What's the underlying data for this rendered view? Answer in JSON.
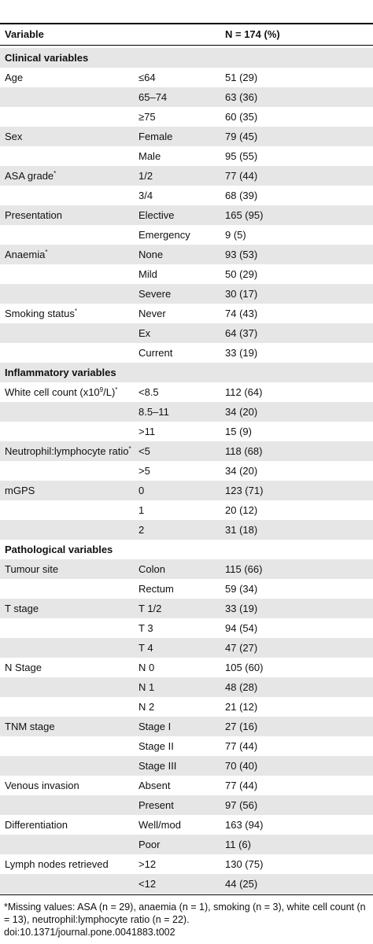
{
  "header": {
    "variable": "Variable",
    "n": "N = 174 (%)"
  },
  "table": {
    "rows": [
      {
        "section": "Clinical variables"
      },
      {
        "variable": "Age",
        "level": "≤64",
        "n": "51 (29)"
      },
      {
        "level": "65–74",
        "n": "63 (36)"
      },
      {
        "level": "≥75",
        "n": "60 (35)"
      },
      {
        "variable": "Sex",
        "level": "Female",
        "n": "79 (45)"
      },
      {
        "level": "Male",
        "n": "95 (55)"
      },
      {
        "variable": "ASA grade",
        "note": "*",
        "level": "1/2",
        "n": "77 (44)"
      },
      {
        "level": "3/4",
        "n": "68 (39)"
      },
      {
        "variable": "Presentation",
        "level": "Elective",
        "n": "165 (95)"
      },
      {
        "level": "Emergency",
        "n": "9 (5)"
      },
      {
        "variable": "Anaemia",
        "note": "*",
        "level": "None",
        "n": "93 (53)"
      },
      {
        "level": "Mild",
        "n": "50 (29)"
      },
      {
        "level": "Severe",
        "n": "30 (17)"
      },
      {
        "variable": "Smoking status",
        "note": "*",
        "level": "Never",
        "n": "74 (43)"
      },
      {
        "level": "Ex",
        "n": "64 (37)"
      },
      {
        "level": "Current",
        "n": "33 (19)"
      },
      {
        "section": "Inflammatory variables"
      },
      {
        "variable": "White cell count (x10",
        "exponent": "9",
        "variable_end": "/L)",
        "note": "*",
        "level": "<8.5",
        "n": "112 (64)"
      },
      {
        "level": "8.5–11",
        "n": "34 (20)"
      },
      {
        "level": ">11",
        "n": "15 (9)"
      },
      {
        "variable": "Neutrophil:lymphocyte ratio",
        "note": "*",
        "level": "<5",
        "n": "118 (68)"
      },
      {
        "level": ">5",
        "n": "34 (20)"
      },
      {
        "variable": "mGPS",
        "level": "0",
        "n": "123 (71)"
      },
      {
        "level": "1",
        "n": "20 (12)"
      },
      {
        "level": "2",
        "n": "31 (18)"
      },
      {
        "section": "Pathological variables"
      },
      {
        "variable": "Tumour site",
        "level": "Colon",
        "n": "115 (66)"
      },
      {
        "level": "Rectum",
        "n": "59 (34)"
      },
      {
        "variable": "T stage",
        "level": "T 1/2",
        "n": "33 (19)"
      },
      {
        "level": "T 3",
        "n": "94 (54)"
      },
      {
        "level": "T 4",
        "n": "47 (27)"
      },
      {
        "variable": "N Stage",
        "level": "N 0",
        "n": "105 (60)"
      },
      {
        "level": "N 1",
        "n": "48 (28)"
      },
      {
        "level": "N 2",
        "n": "21 (12)"
      },
      {
        "variable": "TNM stage",
        "level": "Stage I",
        "n": "27 (16)"
      },
      {
        "level": "Stage II",
        "n": "77 (44)"
      },
      {
        "level": "Stage III",
        "n": "70 (40)"
      },
      {
        "variable": "Venous invasion",
        "level": "Absent",
        "n": "77 (44)"
      },
      {
        "level": "Present",
        "n": "97 (56)"
      },
      {
        "variable": "Differentiation",
        "level": "Well/mod",
        "n": "163 (94)"
      },
      {
        "level": "Poor",
        "n": "11 (6)"
      },
      {
        "variable": "Lymph nodes retrieved",
        "level": ">12",
        "n": "130 (75)"
      },
      {
        "level": "<12",
        "n": "44 (25)"
      }
    ]
  },
  "footnote": {
    "text": "*Missing values: ASA (n = 29), anaemia (n = 1), smoking (n = 3), white cell count (n = 13), neutrophil:lymphocyte ratio (n = 22).",
    "doi": "doi:10.1371/journal.pone.0041883.t002"
  }
}
